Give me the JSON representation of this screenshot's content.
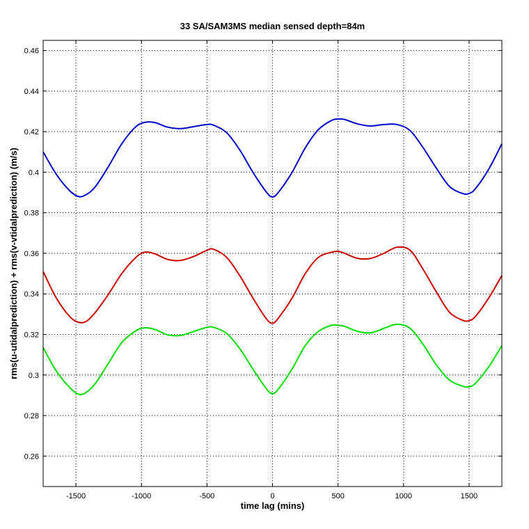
{
  "chart_data": {
    "type": "line",
    "title": "33 SA/SAM3MS median sensed depth=84m",
    "xlabel": "time lag (mins)",
    "ylabel": "rms(u-utidalprediction) + rms(v-vtidalprediction) (m/s)",
    "xlim": [
      -1750,
      1750
    ],
    "ylim": [
      0.245,
      0.465
    ],
    "xticks": [
      -1500,
      -1000,
      -500,
      0,
      500,
      1000,
      1500
    ],
    "yticks": [
      0.26,
      0.28,
      0.3,
      0.32,
      0.34,
      0.36,
      0.38,
      0.4,
      0.42,
      0.44,
      0.46
    ],
    "ytick_labels": [
      "0.26",
      "0.28",
      "0.3",
      "0.32",
      "0.34",
      "0.36",
      "0.38",
      "0.4",
      "0.42",
      "0.44",
      "0.46"
    ],
    "grid": true,
    "series": [
      {
        "name": "blue",
        "color": "#0000cc",
        "x": [
          -1750,
          -1650,
          -1550,
          -1480,
          -1420,
          -1350,
          -1250,
          -1150,
          -1050,
          -980,
          -900,
          -800,
          -700,
          -600,
          -500,
          -450,
          -350,
          -250,
          -150,
          -50,
          0,
          50,
          150,
          250,
          350,
          450,
          500,
          550,
          650,
          750,
          850,
          950,
          1050,
          1150,
          1250,
          1350,
          1450,
          1500,
          1550,
          1650,
          1750
        ],
        "y": [
          0.41,
          0.399,
          0.391,
          0.388,
          0.389,
          0.393,
          0.403,
          0.414,
          0.422,
          0.4245,
          0.4245,
          0.4222,
          0.4215,
          0.4225,
          0.4235,
          0.4232,
          0.4195,
          0.411,
          0.4,
          0.3905,
          0.3878,
          0.3905,
          0.4,
          0.412,
          0.421,
          0.4255,
          0.4262,
          0.426,
          0.4238,
          0.4228,
          0.4235,
          0.4235,
          0.4205,
          0.412,
          0.402,
          0.393,
          0.3895,
          0.3895,
          0.392,
          0.4015,
          0.414
        ]
      },
      {
        "name": "red",
        "color": "#cc0000",
        "x": [
          -1750,
          -1650,
          -1550,
          -1480,
          -1420,
          -1350,
          -1250,
          -1150,
          -1050,
          -980,
          -900,
          -800,
          -700,
          -600,
          -500,
          -450,
          -350,
          -250,
          -150,
          -50,
          0,
          50,
          150,
          250,
          350,
          450,
          500,
          550,
          650,
          750,
          850,
          950,
          1050,
          1150,
          1250,
          1350,
          1450,
          1500,
          1550,
          1650,
          1750
        ],
        "y": [
          0.351,
          0.338,
          0.329,
          0.326,
          0.3265,
          0.331,
          0.34,
          0.35,
          0.3575,
          0.3605,
          0.3598,
          0.357,
          0.3565,
          0.3585,
          0.3615,
          0.362,
          0.358,
          0.349,
          0.338,
          0.328,
          0.3255,
          0.3285,
          0.338,
          0.35,
          0.358,
          0.3605,
          0.361,
          0.36,
          0.3575,
          0.3575,
          0.36,
          0.363,
          0.3615,
          0.352,
          0.341,
          0.331,
          0.327,
          0.3268,
          0.329,
          0.338,
          0.349
        ]
      },
      {
        "name": "green",
        "color": "#00dd00",
        "x": [
          -1750,
          -1650,
          -1550,
          -1480,
          -1420,
          -1350,
          -1250,
          -1150,
          -1050,
          -980,
          -900,
          -800,
          -700,
          -600,
          -500,
          -450,
          -350,
          -250,
          -150,
          -50,
          0,
          50,
          150,
          250,
          350,
          450,
          500,
          550,
          650,
          750,
          850,
          950,
          1050,
          1150,
          1250,
          1350,
          1450,
          1500,
          1550,
          1650,
          1750
        ],
        "y": [
          0.3135,
          0.302,
          0.294,
          0.2905,
          0.2915,
          0.296,
          0.306,
          0.316,
          0.3215,
          0.3232,
          0.3225,
          0.3198,
          0.3195,
          0.3215,
          0.3235,
          0.3235,
          0.3205,
          0.313,
          0.303,
          0.2935,
          0.2908,
          0.2935,
          0.303,
          0.3145,
          0.3215,
          0.3245,
          0.3245,
          0.324,
          0.3215,
          0.3208,
          0.323,
          0.325,
          0.323,
          0.315,
          0.305,
          0.2975,
          0.2945,
          0.2942,
          0.296,
          0.304,
          0.3145
        ]
      }
    ]
  }
}
